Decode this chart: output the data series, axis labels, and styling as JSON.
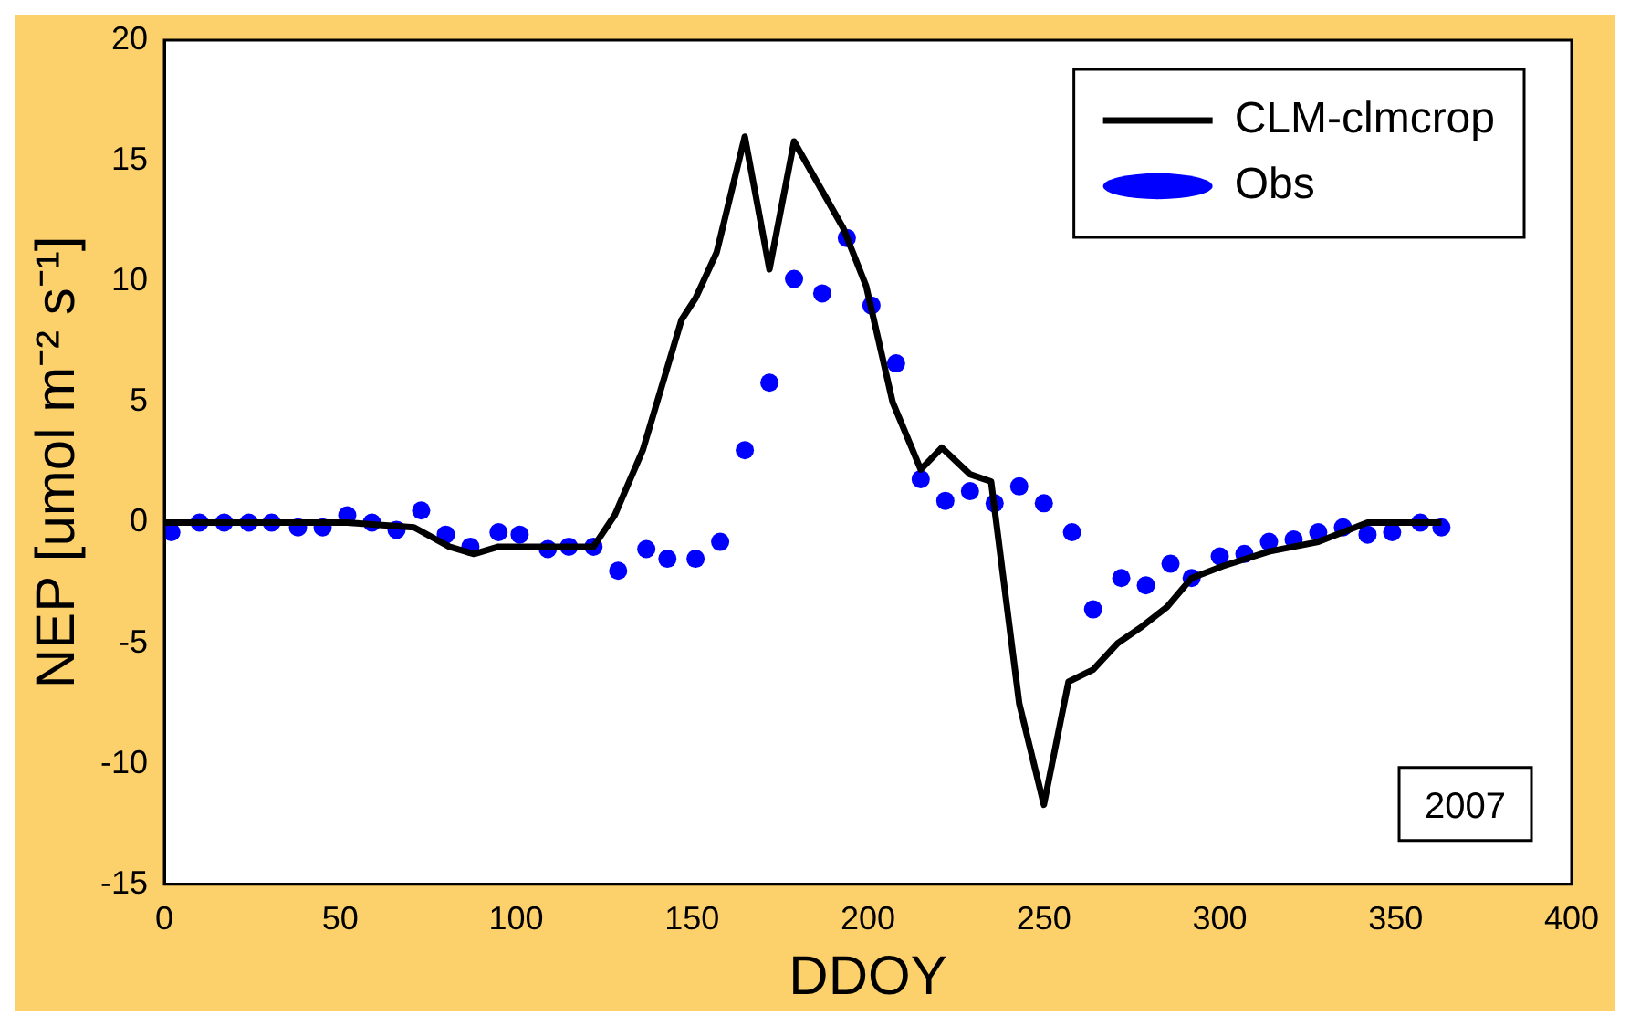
{
  "chart_data": {
    "type": "line",
    "xlabel": "DDOY",
    "ylabel": "NEP [umol m⁻² s⁻¹]",
    "xlim": [
      0,
      400
    ],
    "xticks": [
      0,
      50,
      100,
      150,
      200,
      250,
      300,
      350,
      400
    ],
    "ylim": [
      -15,
      20
    ],
    "yticks": [
      -15,
      -10,
      -5,
      0,
      5,
      10,
      15,
      20
    ],
    "legend": "top right",
    "grid": false,
    "annotations": [
      "2007"
    ],
    "series": [
      {
        "name": "CLM-clmcrop",
        "color": "#000000",
        "marker": "none",
        "line_style": "solid",
        "x": [
          0,
          52,
          71,
          81,
          88,
          95,
          104,
          113,
          122,
          128,
          136,
          147,
          151,
          157,
          165,
          172,
          179,
          193,
          199.5,
          207,
          215,
          221,
          229,
          235,
          243,
          250,
          257,
          264,
          271,
          278,
          285,
          292,
          301,
          314,
          328,
          342,
          363
        ],
        "values": [
          0,
          0,
          -0.2,
          -1.0,
          -1.3,
          -1.0,
          -1.0,
          -1.0,
          -1.0,
          0.3,
          3,
          8.4,
          9.3,
          11.2,
          16,
          10.5,
          15.8,
          12.2,
          9.8,
          5.0,
          2.2,
          3.1,
          2.0,
          1.7,
          -7.5,
          -11.7,
          -6.6,
          -6.1,
          -5.0,
          -4.3,
          -3.5,
          -2.3,
          -1.8,
          -1.2,
          -0.8,
          0,
          0
        ]
      },
      {
        "name": "Obs",
        "type": "scatter",
        "color": "#0000ff",
        "marker": "circle",
        "x": [
          2,
          10,
          17,
          24,
          30.5,
          38,
          45,
          52,
          59,
          66,
          73,
          80,
          87,
          95,
          101,
          109,
          115,
          122,
          129,
          137,
          143,
          151,
          158,
          165,
          172,
          179,
          187,
          194,
          201,
          208,
          215,
          222,
          229,
          236,
          243,
          250,
          258,
          264,
          272,
          279,
          286,
          292,
          300,
          307,
          314,
          321,
          328,
          335,
          342,
          349,
          357,
          363
        ],
        "values": [
          -0.4,
          0,
          0,
          0,
          0,
          -0.2,
          -0.2,
          0.3,
          0,
          -0.3,
          0.5,
          -0.5,
          -1.0,
          -0.4,
          -0.5,
          -1.1,
          -1.0,
          -1.0,
          -2.0,
          -1.1,
          -1.5,
          -1.5,
          -0.8,
          3.0,
          5.8,
          10.1,
          9.5,
          11.8,
          9.0,
          6.6,
          1.8,
          0.9,
          1.3,
          0.8,
          1.5,
          0.8,
          -0.4,
          -3.6,
          -2.3,
          -2.6,
          -1.7,
          -2.3,
          -1.4,
          -1.3,
          -0.8,
          -0.7,
          -0.4,
          -0.2,
          -0.5,
          -0.4,
          0,
          -0.2
        ]
      }
    ]
  }
}
